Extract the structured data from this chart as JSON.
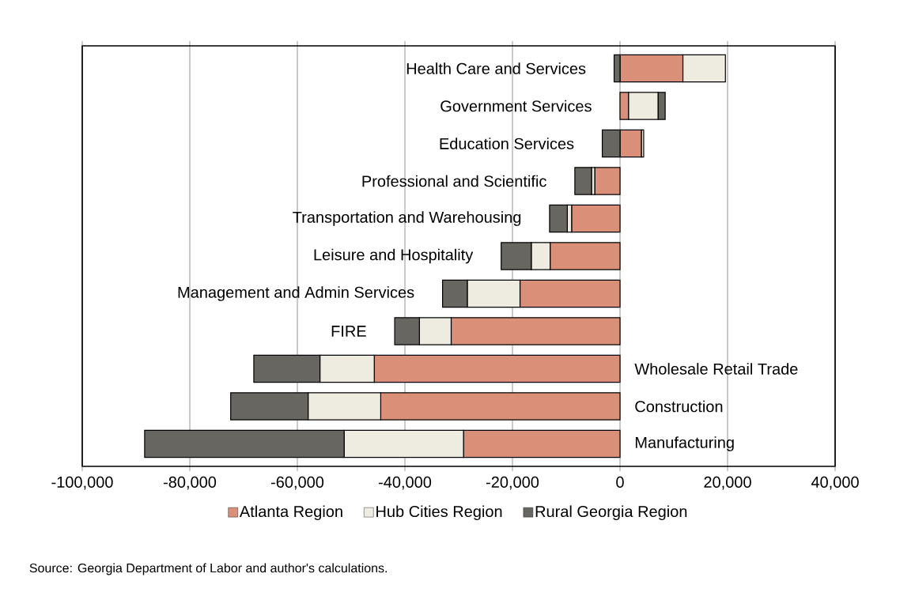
{
  "chart_data": {
    "type": "bar",
    "orientation": "horizontal",
    "stacked": true,
    "categories": [
      "Health Care and Services",
      "Government Services",
      "Education Services",
      "Professional and Scientific",
      "Transportation and Warehousing",
      "Leisure and Hospitality",
      "Management and Admin Services",
      "FIRE",
      "Wholesale Retail Trade",
      "Construction",
      "Manufacturing"
    ],
    "series": [
      {
        "name": "Atlanta Region",
        "color": "#d98f78",
        "values": [
          11700,
          1600,
          4000,
          -4700,
          -9000,
          -13000,
          -18600,
          -31400,
          -45700,
          -44500,
          -29100
        ]
      },
      {
        "name": "Hub Cities Region",
        "color": "#eeece1",
        "values": [
          7900,
          5500,
          400,
          -600,
          -800,
          -3500,
          -9800,
          -5900,
          -10100,
          -13500,
          -22200
        ]
      },
      {
        "name": "Rural Georgia Region",
        "color": "#686660",
        "values": [
          -1100,
          1300,
          -3300,
          -3100,
          -3300,
          -5600,
          -4600,
          -4600,
          -12300,
          -14400,
          -37100
        ]
      }
    ],
    "xlim": [
      -100000,
      40000
    ],
    "xticks": [
      {
        "value": -100000,
        "label": "-100,000"
      },
      {
        "value": -80000,
        "label": "-80,000"
      },
      {
        "value": -60000,
        "label": "-60,000"
      },
      {
        "value": -40000,
        "label": "-40,000"
      },
      {
        "value": -20000,
        "label": "-20,000"
      },
      0,
      {
        "value": 20000,
        "label": "20,000"
      },
      {
        "value": 40000,
        "label": "40,000"
      }
    ],
    "grid": "x",
    "legend": "bottom",
    "annotations": [
      "Source:  Georgia Department of Labor and author's calculations."
    ]
  }
}
